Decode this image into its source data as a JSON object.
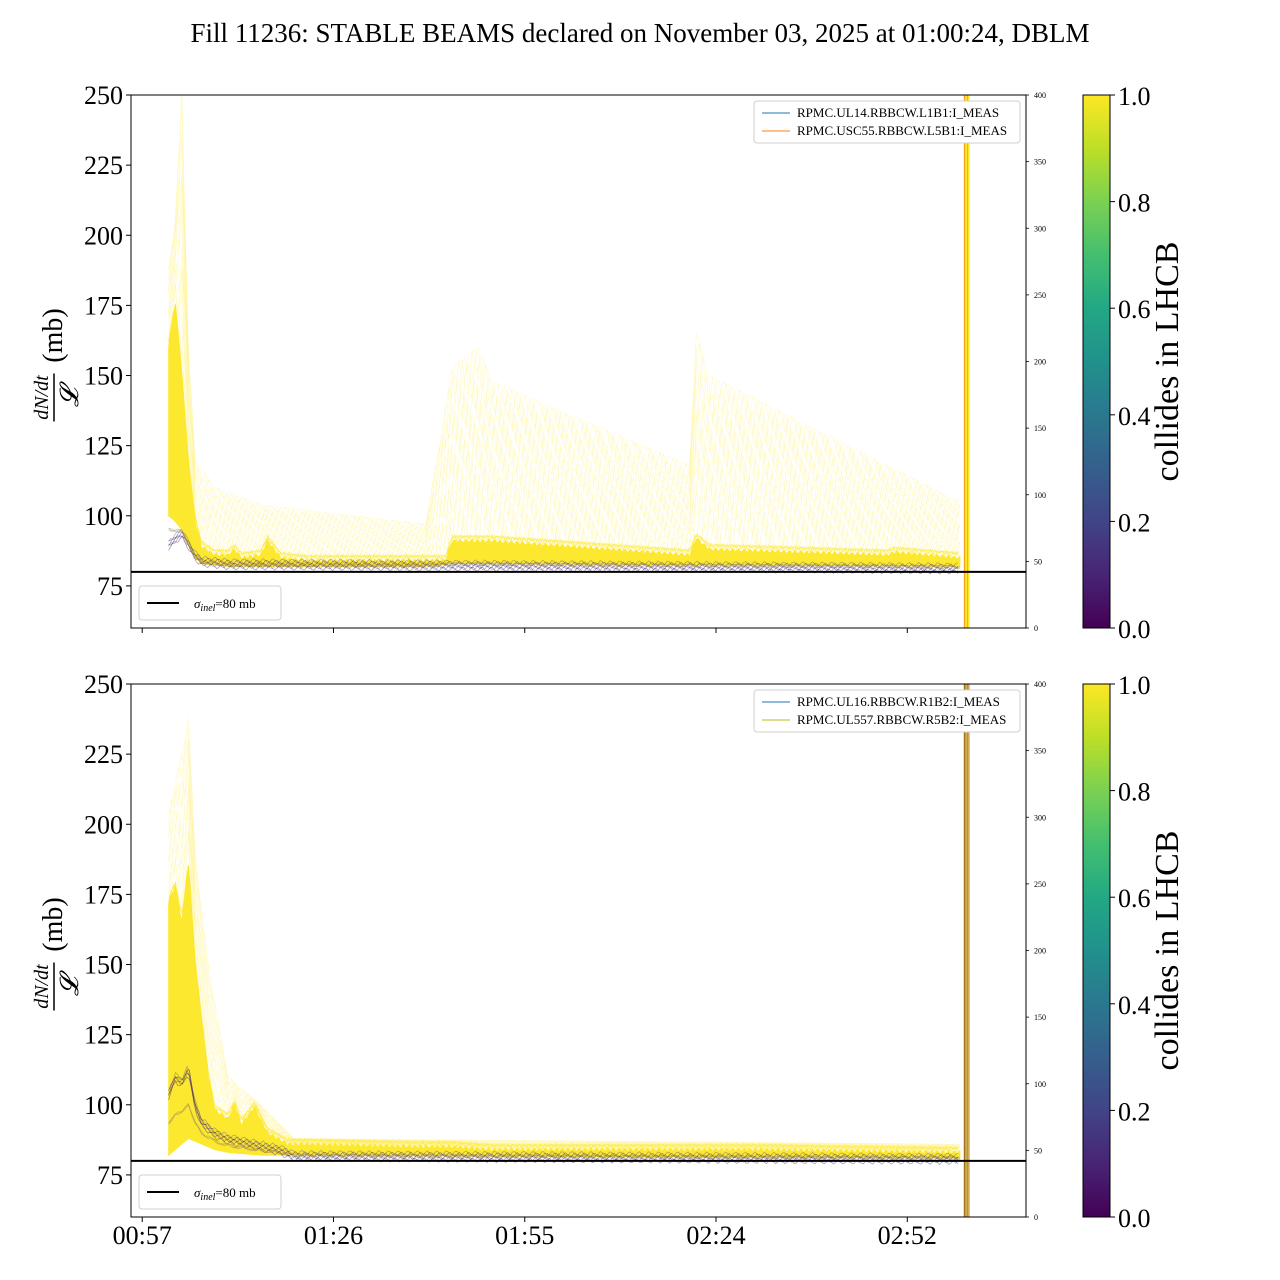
{
  "title": "Fill 11236: STABLE BEAMS declared on November 03, 2025 at 01:00:24, DBLM",
  "colors": {
    "collides_high": "#fde725",
    "collides_low": "#440154",
    "series_blue": "#1f77b4",
    "series_orange": "#ff7f0e",
    "series_gold": "#bcbd22",
    "threshold": "#000000"
  },
  "chart_data": [
    {
      "type": "line",
      "panel": "top",
      "ylabel": "(mb)",
      "ylabel_fraction": {
        "numerator": "dN/dt",
        "denominator": "𝓛"
      },
      "ylim": [
        60,
        250
      ],
      "yticks": [
        75,
        100,
        125,
        150,
        175,
        200,
        225,
        250
      ],
      "y2lim": [
        0,
        400
      ],
      "y2ticks": [
        0,
        50,
        100,
        150,
        200,
        250,
        300,
        350,
        400
      ],
      "xlim_minutes": [
        55.3,
        191
      ],
      "xticks": [
        {
          "label": "00:57",
          "minute": 57
        },
        {
          "label": "01:26",
          "minute": 86
        },
        {
          "label": "01:55",
          "minute": 115
        },
        {
          "label": "02:24",
          "minute": 144
        },
        {
          "label": "02:52",
          "minute": 173
        }
      ],
      "show_xtick_labels": false,
      "hline": {
        "y": 80,
        "label": "σinel=80 mb",
        "sym": "σ",
        "sub": "inel",
        "rest": "=80 mb"
      },
      "legend": [
        {
          "name": "RPMC.UL14.RBBCW.L1B1:I_MEAS",
          "color": "#1f77b4"
        },
        {
          "name": "RPMC.USC55.RBBCW.L5B1:I_MEAS",
          "color": "#ff7f0e"
        }
      ],
      "band_upper": [
        [
          61,
          160
        ],
        [
          62,
          175
        ],
        [
          63,
          150
        ],
        [
          64,
          118
        ],
        [
          65,
          98
        ],
        [
          66,
          89
        ],
        [
          68,
          86
        ],
        [
          70,
          86
        ],
        [
          71,
          88
        ],
        [
          72,
          85
        ],
        [
          75,
          86
        ],
        [
          76,
          91
        ],
        [
          78,
          85
        ],
        [
          82,
          84
        ],
        [
          100,
          84
        ],
        [
          103,
          84
        ],
        [
          104,
          91
        ],
        [
          110,
          91
        ],
        [
          140,
          86
        ],
        [
          141,
          92
        ],
        [
          143,
          88
        ],
        [
          170,
          86
        ],
        [
          171,
          87
        ],
        [
          181,
          85
        ]
      ],
      "band_lower": [
        [
          61,
          100
        ],
        [
          62,
          98
        ],
        [
          63,
          95
        ],
        [
          64,
          90
        ],
        [
          65,
          85
        ],
        [
          66,
          83
        ],
        [
          70,
          82
        ],
        [
          100,
          82
        ],
        [
          104,
          83
        ],
        [
          181,
          82
        ]
      ],
      "faint_upper": [
        [
          61,
          188
        ],
        [
          62,
          205
        ],
        [
          63,
          250
        ],
        [
          64,
          160
        ],
        [
          65,
          120
        ],
        [
          68,
          110
        ],
        [
          75,
          104
        ],
        [
          100,
          97
        ],
        [
          104,
          153
        ],
        [
          108,
          160
        ],
        [
          110,
          148
        ],
        [
          140,
          118
        ],
        [
          141,
          165
        ],
        [
          143,
          150
        ],
        [
          180,
          106
        ]
      ],
      "low_collide": [
        [
          61,
          90
        ],
        [
          62,
          92
        ],
        [
          63,
          94
        ],
        [
          64,
          90
        ],
        [
          65,
          86
        ],
        [
          66,
          84
        ],
        [
          70,
          83
        ],
        [
          181,
          81.5
        ]
      ],
      "spike_minute": 182
    },
    {
      "type": "line",
      "panel": "bottom",
      "ylabel": "(mb)",
      "ylabel_fraction": {
        "numerator": "dN/dt",
        "denominator": "𝓛"
      },
      "ylim": [
        60,
        250
      ],
      "yticks": [
        75,
        100,
        125,
        150,
        175,
        200,
        225,
        250
      ],
      "y2lim": [
        0,
        400
      ],
      "y2ticks": [
        0,
        50,
        100,
        150,
        200,
        250,
        300,
        350,
        400
      ],
      "xlim_minutes": [
        55.3,
        191
      ],
      "xticks": [
        {
          "label": "00:57",
          "minute": 57
        },
        {
          "label": "01:26",
          "minute": 86
        },
        {
          "label": "01:55",
          "minute": 115
        },
        {
          "label": "02:24",
          "minute": 144
        },
        {
          "label": "02:52",
          "minute": 173
        }
      ],
      "show_xtick_labels": true,
      "hline": {
        "y": 80,
        "label": "σinel=80 mb",
        "sym": "σ",
        "sub": "inel",
        "rest": "=80 mb"
      },
      "legend": [
        {
          "name": "RPMC.UL16.RBBCW.R1B2:I_MEAS",
          "color": "#1f77b4"
        },
        {
          "name": "RPMC.UL557.RBBCW.R5B2:I_MEAS",
          "color": "#bcbd22"
        }
      ],
      "band_upper": [
        [
          61,
          172
        ],
        [
          62,
          178
        ],
        [
          63,
          165
        ],
        [
          64,
          185
        ],
        [
          65,
          150
        ],
        [
          66,
          130
        ],
        [
          67,
          110
        ],
        [
          68,
          98
        ],
        [
          70,
          95
        ],
        [
          71,
          100
        ],
        [
          72,
          93
        ],
        [
          74,
          99
        ],
        [
          76,
          90
        ],
        [
          79,
          86
        ],
        [
          100,
          85
        ],
        [
          104,
          85
        ],
        [
          110,
          84
        ],
        [
          150,
          84
        ],
        [
          181,
          83
        ]
      ],
      "band_lower": [
        [
          61,
          82
        ],
        [
          64,
          88
        ],
        [
          66,
          86
        ],
        [
          68,
          84
        ],
        [
          70,
          83
        ],
        [
          75,
          82
        ],
        [
          181,
          81
        ]
      ],
      "faint_upper": [
        [
          61,
          205
        ],
        [
          62,
          215
        ],
        [
          63,
          225
        ],
        [
          64,
          238
        ],
        [
          65,
          190
        ],
        [
          67,
          150
        ],
        [
          70,
          110
        ],
        [
          75,
          100
        ],
        [
          80,
          88
        ],
        [
          181,
          86
        ]
      ],
      "low_collide": [
        [
          61,
          104
        ],
        [
          62,
          110
        ],
        [
          63,
          108
        ],
        [
          64,
          113
        ],
        [
          65,
          100
        ],
        [
          66,
          94
        ],
        [
          68,
          90
        ],
        [
          70,
          88
        ],
        [
          74,
          86
        ],
        [
          78,
          84
        ],
        [
          80,
          82
        ],
        [
          181,
          81
        ]
      ],
      "spike_minute": 182
    }
  ],
  "colorbars": [
    {
      "label": "collides in LHCB",
      "ticks": [
        "0.0",
        "0.2",
        "0.4",
        "0.6",
        "0.8",
        "1.0"
      ]
    },
    {
      "label": "collides in LHCB",
      "ticks": [
        "0.0",
        "0.2",
        "0.4",
        "0.6",
        "0.8",
        "1.0"
      ]
    }
  ]
}
